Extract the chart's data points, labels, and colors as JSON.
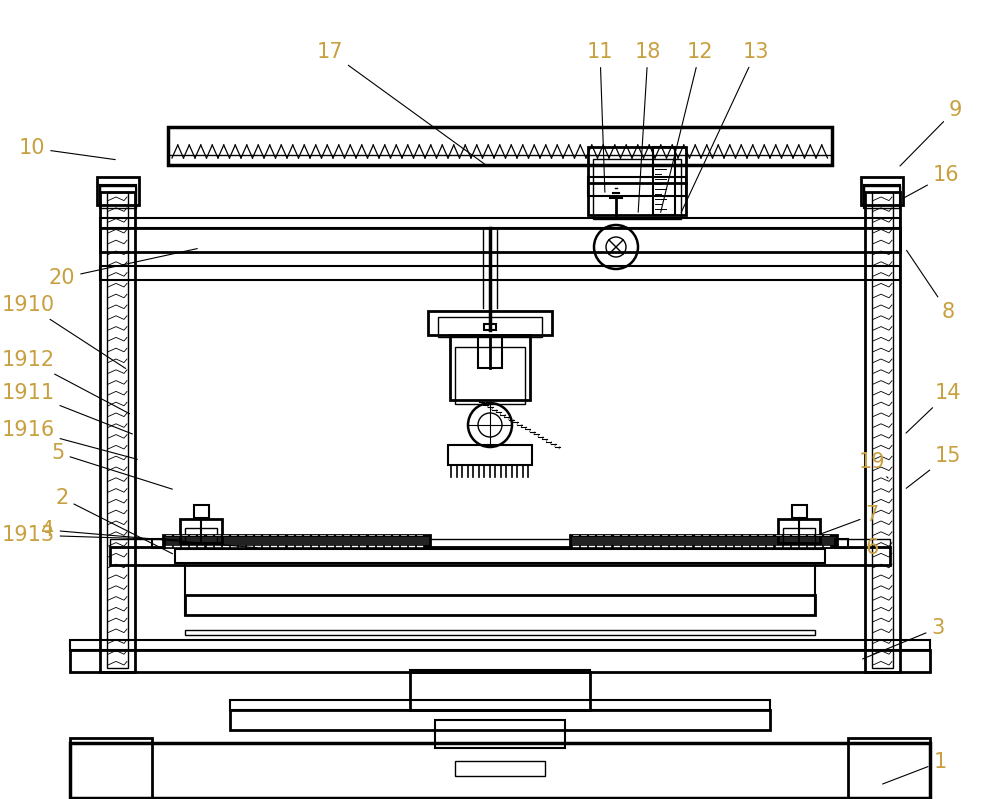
{
  "bg_color": "#ffffff",
  "line_color": "#000000",
  "label_color": "#c8a040",
  "figsize": [
    10.0,
    7.99
  ],
  "dpi": 100,
  "annotations": [
    [
      "1",
      940,
      762,
      880,
      785
    ],
    [
      "3",
      938,
      628,
      860,
      660
    ],
    [
      "6",
      872,
      548,
      818,
      548
    ],
    [
      "7",
      872,
      515,
      818,
      535
    ],
    [
      "8",
      948,
      312,
      905,
      248
    ],
    [
      "9",
      955,
      110,
      898,
      168
    ],
    [
      "10",
      32,
      148,
      118,
      160
    ],
    [
      "11",
      600,
      52,
      605,
      195
    ],
    [
      "12",
      700,
      52,
      660,
      215
    ],
    [
      "13",
      756,
      52,
      680,
      215
    ],
    [
      "14",
      948,
      393,
      904,
      435
    ],
    [
      "15",
      948,
      456,
      904,
      490
    ],
    [
      "16",
      946,
      175,
      900,
      200
    ],
    [
      "17",
      330,
      52,
      490,
      168
    ],
    [
      "18",
      648,
      52,
      638,
      215
    ],
    [
      "19",
      872,
      462,
      890,
      480
    ],
    [
      "20",
      62,
      278,
      200,
      248
    ],
    [
      "2",
      62,
      498,
      175,
      555
    ],
    [
      "4",
      48,
      530,
      260,
      548
    ],
    [
      "5",
      58,
      453,
      175,
      490
    ],
    [
      "1910",
      28,
      305,
      128,
      370
    ],
    [
      "1912",
      28,
      360,
      132,
      415
    ],
    [
      "1911",
      28,
      393,
      135,
      435
    ],
    [
      "1916",
      28,
      430,
      140,
      460
    ],
    [
      "1913",
      28,
      535,
      185,
      540
    ]
  ]
}
